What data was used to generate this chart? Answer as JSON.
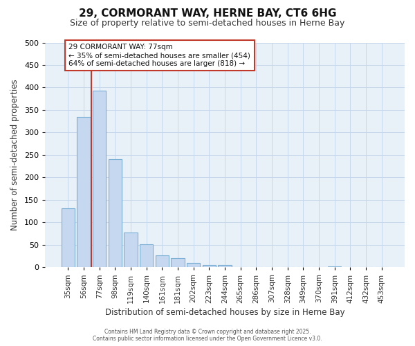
{
  "title_line1": "29, CORMORANT WAY, HERNE BAY, CT6 6HG",
  "title_line2": "Size of property relative to semi-detached houses in Herne Bay",
  "xlabel": "Distribution of semi-detached houses by size in Herne Bay",
  "ylabel": "Number of semi-detached properties",
  "categories": [
    "35sqm",
    "56sqm",
    "77sqm",
    "98sqm",
    "119sqm",
    "140sqm",
    "161sqm",
    "181sqm",
    "202sqm",
    "223sqm",
    "244sqm",
    "265sqm",
    "286sqm",
    "307sqm",
    "328sqm",
    "349sqm",
    "370sqm",
    "391sqm",
    "412sqm",
    "432sqm",
    "453sqm"
  ],
  "values": [
    132,
    335,
    393,
    241,
    78,
    51,
    27,
    20,
    10,
    5,
    5,
    0,
    0,
    0,
    0,
    0,
    0,
    2,
    0,
    0,
    0
  ],
  "bar_color": "#c5d8f0",
  "bar_edge_color": "#7bafd4",
  "vline_x_index": 2,
  "vline_color": "#c0392b",
  "annotation_text": "29 CORMORANT WAY: 77sqm\n← 35% of semi-detached houses are smaller (454)\n64% of semi-detached houses are larger (818) →",
  "annotation_box_color": "#ffffff",
  "annotation_box_edge_color": "#c0392b",
  "ylim": [
    0,
    500
  ],
  "yticks": [
    0,
    50,
    100,
    150,
    200,
    250,
    300,
    350,
    400,
    450,
    500
  ],
  "grid_color": "#c8d8ec",
  "background_color": "#ffffff",
  "plot_bg_color": "#e8f0f8",
  "footer_line1": "Contains HM Land Registry data © Crown copyright and database right 2025.",
  "footer_line2": "Contains public sector information licensed under the Open Government Licence v3.0."
}
